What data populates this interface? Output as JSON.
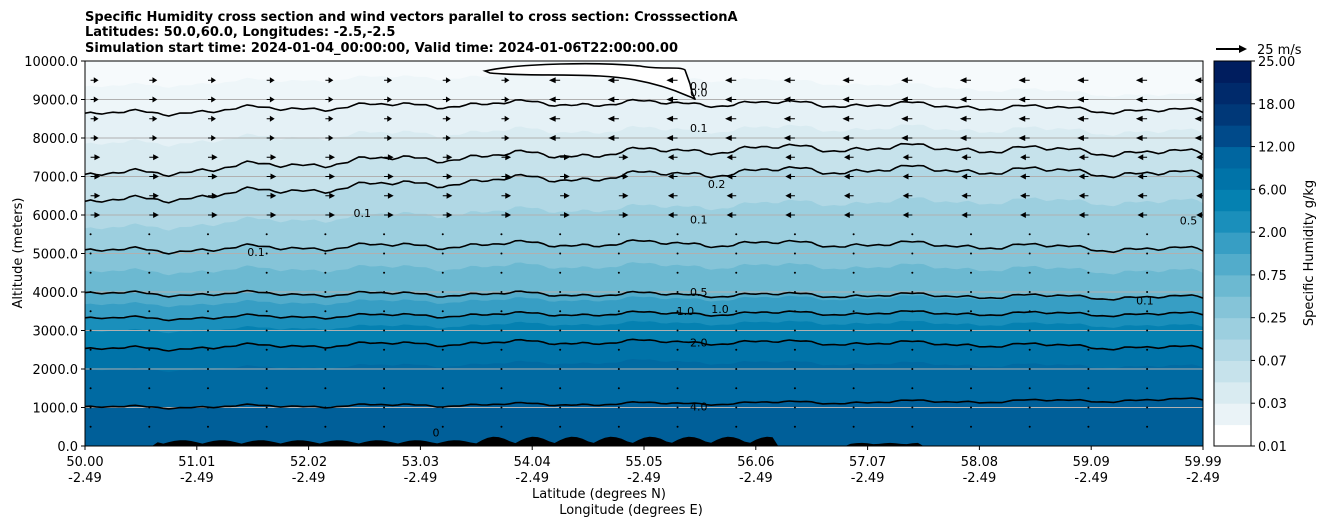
{
  "chart_data": {
    "type": "filled-contour",
    "title_lines": [
      "Specific Humidity cross section and wind vectors parallel to cross section: CrosssectionA",
      "Latitudes: 50.0,60.0, Longitudes: -2.5,-2.5",
      "Simulation start time: 2024-01-04_00:00:00, Valid time: 2024-01-06T22:00:00.00"
    ],
    "ylabel": "Altitude (meters)",
    "xlabel_lat": "Latitude (degrees N)",
    "xlabel_lon": "Longitude (degrees E)",
    "ylim": [
      0,
      10000
    ],
    "y_ticks": [
      "0.0",
      "1000.0",
      "2000.0",
      "3000.0",
      "4000.0",
      "5000.0",
      "6000.0",
      "7000.0",
      "8000.0",
      "9000.0",
      "10000.0"
    ],
    "x_ticks_lat": [
      "50.00",
      "51.01",
      "52.02",
      "53.03",
      "54.04",
      "55.05",
      "56.06",
      "57.07",
      "58.08",
      "59.09",
      "59.99"
    ],
    "x_ticks_lon": [
      "-2.49",
      "-2.49",
      "-2.49",
      "-2.49",
      "-2.49",
      "-2.49",
      "-2.49",
      "-2.49",
      "-2.49",
      "-2.49",
      "-2.49"
    ],
    "grid": "horizontal",
    "colorbar": {
      "label": "Specific Humidity g/kg",
      "tick_labels": [
        "0.01",
        "0.03",
        "0.07",
        "0.25",
        "0.75",
        "2.00",
        "6.00",
        "12.00",
        "18.00",
        "25.00"
      ],
      "levels": [
        0.01,
        0.02,
        0.03,
        0.05,
        0.07,
        0.1,
        0.25,
        0.5,
        0.75,
        1,
        2,
        4,
        6,
        9,
        12,
        15,
        18,
        21,
        25
      ],
      "colors": [
        "#ffffff",
        "#eaf3f7",
        "#d9ebf1",
        "#c6e2eb",
        "#b1d8e5",
        "#9ccfdf",
        "#85c4d8",
        "#6cb9d1",
        "#52accb",
        "#379ec4",
        "#1a8fbb",
        "#0581b1",
        "#0073a8",
        "#0066a0",
        "#004a8a",
        "#003878",
        "#002a6b",
        "#001d5e"
      ]
    },
    "contour_labels": [
      {
        "text": "0.0",
        "x": 0.549,
        "y": 9250
      },
      {
        "text": "0.0",
        "x": 0.549,
        "y": 9080
      },
      {
        "text": "0.1",
        "x": 0.549,
        "y": 8150
      },
      {
        "text": "0.2",
        "x": 0.565,
        "y": 6700
      },
      {
        "text": "0.1",
        "x": 0.549,
        "y": 5780
      },
      {
        "text": "0.1",
        "x": 0.248,
        "y": 5950
      },
      {
        "text": "0.1",
        "x": 0.153,
        "y": 4930
      },
      {
        "text": "0.5",
        "x": 0.987,
        "y": 5750
      },
      {
        "text": "0.1",
        "x": 0.948,
        "y": 3680
      },
      {
        "text": "0.5",
        "x": 0.549,
        "y": 3900
      },
      {
        "text": "1.0",
        "x": 0.537,
        "y": 3400
      },
      {
        "text": "1.0",
        "x": 0.568,
        "y": 3450
      },
      {
        "text": "2.0",
        "x": 0.549,
        "y": 2580
      },
      {
        "text": "4.0",
        "x": 0.549,
        "y": 920
      },
      {
        "text": "0",
        "x": 0.314,
        "y": 250
      }
    ],
    "wind_key": {
      "label": "25 m/s",
      "speed": 25
    }
  }
}
